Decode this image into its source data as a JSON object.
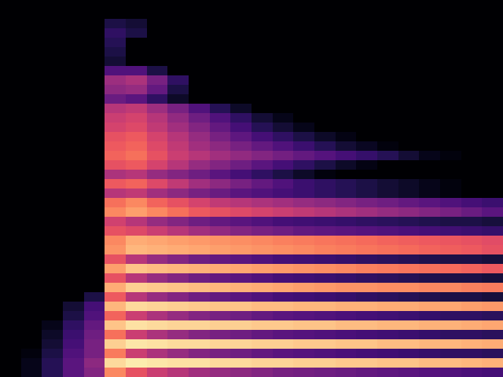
{
  "chart_data": {
    "type": "heatmap",
    "color": "magma",
    "color_range": [
      -80,
      0
    ],
    "tick_labels": false,
    "cells": [
      [
        -80,
        -80,
        -80,
        -80,
        -80,
        -80,
        -80,
        -80,
        -80,
        -80,
        -80,
        -80,
        -80,
        -80,
        -80,
        -80,
        -80,
        -80,
        -80,
        -80,
        -80,
        -80,
        -80,
        -80
      ],
      [
        -80,
        -80,
        -80,
        -80,
        -80,
        -80,
        -80,
        -80,
        -80,
        -80,
        -80,
        -80,
        -80,
        -80,
        -80,
        -80,
        -80,
        -80,
        -80,
        -80,
        -80,
        -80,
        -80,
        -80
      ],
      [
        -80,
        -80,
        -80,
        -80,
        -80,
        -70,
        -72,
        -80,
        -80,
        -80,
        -80,
        -80,
        -80,
        -80,
        -80,
        -80,
        -80,
        -80,
        -80,
        -80,
        -80,
        -80,
        -80,
        -80
      ],
      [
        -80,
        -80,
        -80,
        -80,
        -80,
        -66,
        -70,
        -80,
        -80,
        -80,
        -80,
        -80,
        -80,
        -80,
        -80,
        -80,
        -80,
        -80,
        -80,
        -80,
        -80,
        -80,
        -80,
        -80
      ],
      [
        -80,
        -80,
        -80,
        -80,
        -80,
        -68,
        -80,
        -80,
        -80,
        -80,
        -80,
        -80,
        -80,
        -80,
        -80,
        -80,
        -80,
        -80,
        -80,
        -80,
        -80,
        -80,
        -80,
        -80
      ],
      [
        -80,
        -80,
        -80,
        -80,
        -80,
        -70,
        -80,
        -80,
        -80,
        -80,
        -80,
        -80,
        -80,
        -80,
        -80,
        -80,
        -80,
        -80,
        -80,
        -80,
        -80,
        -80,
        -80,
        -80
      ],
      [
        -80,
        -80,
        -80,
        -80,
        -80,
        -72,
        -80,
        -80,
        -80,
        -80,
        -80,
        -80,
        -80,
        -80,
        -80,
        -80,
        -80,
        -80,
        -80,
        -80,
        -80,
        -80,
        -80,
        -80
      ],
      [
        -80,
        -80,
        -80,
        -80,
        -80,
        -60,
        -60,
        -70,
        -80,
        -80,
        -80,
        -80,
        -80,
        -80,
        -80,
        -80,
        -80,
        -80,
        -80,
        -80,
        -80,
        -80,
        -80,
        -80
      ],
      [
        -80,
        -80,
        -80,
        -80,
        -80,
        -45,
        -42,
        -52,
        -66,
        -80,
        -80,
        -80,
        -80,
        -80,
        -80,
        -80,
        -80,
        -80,
        -80,
        -80,
        -80,
        -80,
        -80,
        -80
      ],
      [
        -80,
        -80,
        -80,
        -80,
        -80,
        -48,
        -46,
        -56,
        -70,
        -80,
        -80,
        -80,
        -80,
        -80,
        -80,
        -80,
        -80,
        -80,
        -80,
        -80,
        -80,
        -80,
        -80,
        -80
      ],
      [
        -80,
        -80,
        -80,
        -80,
        -80,
        -55,
        -58,
        -66,
        -74,
        -80,
        -80,
        -80,
        -80,
        -80,
        -80,
        -80,
        -80,
        -80,
        -80,
        -80,
        -80,
        -80,
        -80,
        -80
      ],
      [
        -80,
        -80,
        -80,
        -80,
        -80,
        -40,
        -38,
        -45,
        -52,
        -60,
        -68,
        -74,
        -80,
        -80,
        -80,
        -80,
        -80,
        -80,
        -80,
        -80,
        -80,
        -80,
        -80,
        -80
      ],
      [
        -80,
        -80,
        -80,
        -80,
        -80,
        -36,
        -34,
        -40,
        -47,
        -54,
        -60,
        -66,
        -72,
        -76,
        -80,
        -80,
        -80,
        -80,
        -80,
        -80,
        -80,
        -80,
        -80,
        -80
      ],
      [
        -80,
        -80,
        -80,
        -80,
        -80,
        -34,
        -32,
        -38,
        -44,
        -50,
        -56,
        -62,
        -68,
        -72,
        -76,
        -80,
        -80,
        -80,
        -80,
        -80,
        -80,
        -80,
        -80,
        -80
      ],
      [
        -80,
        -80,
        -80,
        -80,
        -80,
        -30,
        -28,
        -34,
        -40,
        -46,
        -52,
        -57,
        -62,
        -66,
        -70,
        -74,
        -77,
        -80,
        -80,
        -80,
        -80,
        -80,
        -80,
        -80
      ],
      [
        -80,
        -80,
        -80,
        -80,
        -80,
        -28,
        -26,
        -32,
        -38,
        -44,
        -48,
        -52,
        -56,
        -60,
        -64,
        -68,
        -72,
        -75,
        -78,
        -80,
        -80,
        -80,
        -80,
        -80
      ],
      [
        -80,
        -80,
        -80,
        -80,
        -80,
        -26,
        -24,
        -30,
        -36,
        -40,
        -44,
        -47,
        -50,
        -53,
        -56,
        -59,
        -62,
        -65,
        -68,
        -72,
        -76,
        -78,
        -80,
        -80
      ],
      [
        -80,
        -80,
        -80,
        -80,
        -80,
        -30,
        -28,
        -34,
        -40,
        -46,
        -50,
        -54,
        -58,
        -62,
        -66,
        -70,
        -74,
        -77,
        -80,
        -80,
        -80,
        -80,
        -80,
        -80
      ],
      [
        -80,
        -80,
        -80,
        -80,
        -80,
        -42,
        -40,
        -46,
        -50,
        -54,
        -58,
        -62,
        -66,
        -70,
        -74,
        -78,
        -80,
        -80,
        -80,
        -80,
        -80,
        -80,
        -80,
        -80
      ],
      [
        -80,
        -80,
        -80,
        -80,
        -80,
        -28,
        -26,
        -32,
        -38,
        -44,
        -48,
        -52,
        -56,
        -60,
        -64,
        -66,
        -68,
        -70,
        -72,
        -74,
        -76,
        -78,
        -80,
        -80
      ],
      [
        -80,
        -80,
        -80,
        -80,
        -80,
        -40,
        -38,
        -44,
        -48,
        -52,
        -55,
        -58,
        -60,
        -62,
        -64,
        -66,
        -68,
        -70,
        -72,
        -74,
        -76,
        -78,
        -80,
        -80
      ],
      [
        -80,
        -80,
        -80,
        -80,
        -80,
        -24,
        -20,
        -26,
        -30,
        -34,
        -38,
        -40,
        -42,
        -44,
        -46,
        -48,
        -50,
        -52,
        -54,
        -56,
        -58,
        -60,
        -62,
        -64
      ],
      [
        -80,
        -80,
        -80,
        -80,
        -80,
        -20,
        -16,
        -20,
        -24,
        -28,
        -30,
        -32,
        -34,
        -36,
        -38,
        -40,
        -42,
        -44,
        -46,
        -48,
        -50,
        -52,
        -55,
        -58
      ],
      [
        -80,
        -80,
        -80,
        -80,
        -80,
        -35,
        -40,
        -46,
        -50,
        -54,
        -56,
        -58,
        -60,
        -62,
        -63,
        -64,
        -65,
        -66,
        -67,
        -68,
        -69,
        -70,
        -70,
        -71
      ],
      [
        -80,
        -80,
        -80,
        -80,
        -80,
        -30,
        -32,
        -36,
        -40,
        -44,
        -47,
        -50,
        -52,
        -54,
        -56,
        -57,
        -58,
        -59,
        -60,
        -61,
        -62,
        -63,
        -64,
        -65
      ],
      [
        -80,
        -80,
        -80,
        -80,
        -80,
        -20,
        -14,
        -15,
        -16,
        -17,
        -18,
        -19,
        -20,
        -21,
        -22,
        -23,
        -24,
        -25,
        -26,
        -27,
        -28,
        -29,
        -30,
        -31
      ],
      [
        -80,
        -80,
        -80,
        -80,
        -80,
        -18,
        -12,
        -13,
        -14,
        -15,
        -16,
        -17,
        -18,
        -19,
        -20,
        -21,
        -22,
        -23,
        -24,
        -25,
        -26,
        -27,
        -28,
        -30
      ],
      [
        -80,
        -80,
        -80,
        -80,
        -80,
        -30,
        -40,
        -46,
        -50,
        -54,
        -56,
        -58,
        -60,
        -62,
        -63,
        -64,
        -65,
        -66,
        -67,
        -68,
        -69,
        -70,
        -70,
        -71
      ],
      [
        -80,
        -80,
        -80,
        -80,
        -80,
        -16,
        -10,
        -11,
        -12,
        -13,
        -14,
        -15,
        -16,
        -17,
        -18,
        -19,
        -20,
        -21,
        -22,
        -23,
        -24,
        -25,
        -26,
        -28
      ],
      [
        -80,
        -80,
        -80,
        -80,
        -80,
        -30,
        -40,
        -46,
        -50,
        -54,
        -56,
        -58,
        -60,
        -62,
        -63,
        -64,
        -65,
        -66,
        -67,
        -68,
        -69,
        -70,
        -70,
        -71
      ],
      [
        -80,
        -80,
        -80,
        -80,
        -80,
        -14,
        -8,
        -9,
        -10,
        -11,
        -12,
        -13,
        -14,
        -15,
        -16,
        -17,
        -18,
        -18,
        -19,
        -19,
        -20,
        -20,
        -21,
        -22
      ],
      [
        -80,
        -80,
        -80,
        -80,
        -70,
        -28,
        -40,
        -46,
        -50,
        -54,
        -56,
        -58,
        -60,
        -62,
        -63,
        -64,
        -65,
        -66,
        -67,
        -68,
        -69,
        -70,
        -70,
        -71
      ],
      [
        -80,
        -80,
        -80,
        -72,
        -62,
        -12,
        -6,
        -7,
        -8,
        -9,
        -10,
        -10,
        -11,
        -11,
        -12,
        -12,
        -13,
        -13,
        -14,
        -14,
        -15,
        -15,
        -16,
        -17
      ],
      [
        -80,
        -80,
        -80,
        -70,
        -60,
        -26,
        -36,
        -42,
        -46,
        -50,
        -52,
        -54,
        -56,
        -58,
        -59,
        -60,
        -61,
        -62,
        -63,
        -64,
        -65,
        -66,
        -66,
        -67
      ],
      [
        -80,
        -80,
        -76,
        -66,
        -56,
        -10,
        -5,
        -6,
        -7,
        -7,
        -8,
        -8,
        -9,
        -9,
        -10,
        -10,
        -11,
        -11,
        -12,
        -12,
        -13,
        -13,
        -14,
        -15
      ],
      [
        -80,
        -80,
        -74,
        -64,
        -54,
        -24,
        -36,
        -42,
        -46,
        -50,
        -52,
        -54,
        -56,
        -58,
        -59,
        -60,
        -61,
        -62,
        -63,
        -64,
        -65,
        -66,
        -66,
        -67
      ],
      [
        -80,
        -80,
        -72,
        -62,
        -52,
        -8,
        -4,
        -5,
        -6,
        -6,
        -7,
        -7,
        -8,
        -8,
        -9,
        -9,
        -10,
        -10,
        -11,
        -11,
        -12,
        -12,
        -13,
        -14
      ],
      [
        -80,
        -78,
        -70,
        -60,
        -52,
        -22,
        -36,
        -42,
        -46,
        -50,
        -52,
        -54,
        -56,
        -58,
        -59,
        -60,
        -61,
        -62,
        -63,
        -64,
        -65,
        -66,
        -66,
        -67
      ],
      [
        -80,
        -76,
        -68,
        -58,
        -48,
        -6,
        -3,
        -4,
        -5,
        -5,
        -6,
        -6,
        -7,
        -7,
        -8,
        -8,
        -9,
        -9,
        -10,
        -10,
        -11,
        -11,
        -12,
        -13
      ],
      [
        -80,
        -76,
        -68,
        -58,
        -50,
        -20,
        -30,
        -36,
        -40,
        -44,
        -46,
        -48,
        -50,
        -52,
        -53,
        -54,
        -55,
        -56,
        -57,
        -58,
        -59,
        -60,
        -61,
        -62
      ]
    ]
  }
}
